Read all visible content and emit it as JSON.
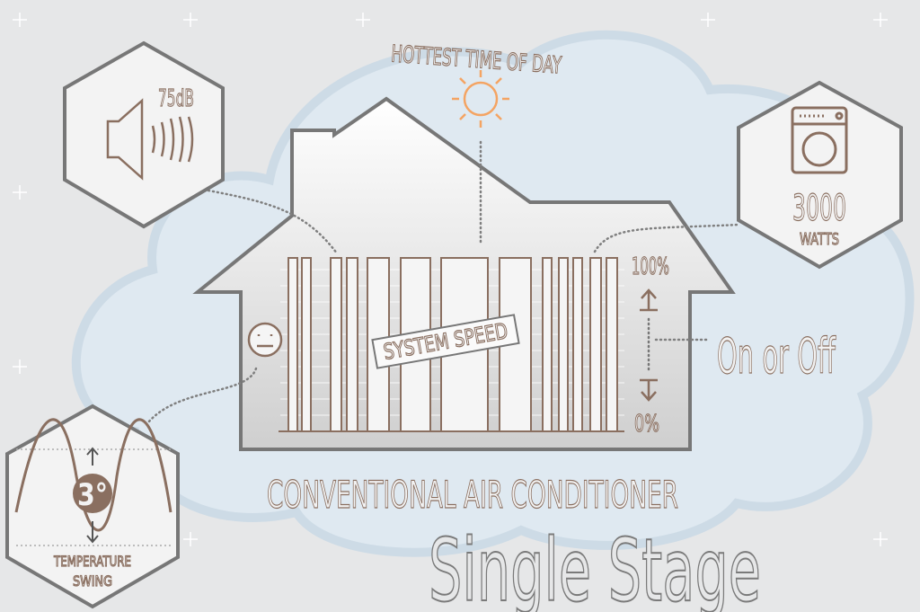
{
  "sun_label": "HOTTEST TIME OF DAY",
  "noise": {
    "label": "75dB"
  },
  "power": {
    "value": "3000",
    "unit": "WATTS"
  },
  "speed": {
    "label": "SYSTEM SPEED",
    "max": "100%",
    "min": "0%",
    "mode": "On or Off"
  },
  "temperature": {
    "value": "3°",
    "label": [
      "TEMPERATURE",
      "SWING"
    ]
  },
  "title": "CONVENTIONAL AIR CONDITIONER",
  "subtitle": "Single Stage"
}
